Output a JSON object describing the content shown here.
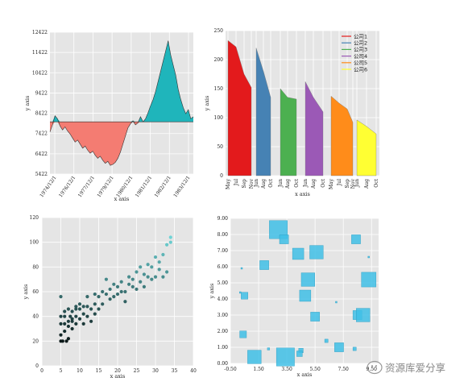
{
  "chart_data": [
    {
      "type": "area",
      "panel": "top-left",
      "xlabel": "x axis",
      "ylabel": "y axis",
      "ylim": [
        5422,
        12422
      ],
      "yticks": [
        5422,
        6422,
        7422,
        8422,
        9422,
        10422,
        11422,
        12422
      ],
      "xtick_labels": [
        "1974/12/1",
        "1976/12/1",
        "1977/12/1",
        "1979/12/1",
        "1980/12/1",
        "1981/12/1",
        "1982/12/1",
        "1983/12/1"
      ],
      "baseline": 8000,
      "colors": {
        "above": "#1fb5bb",
        "below": "#f47c72"
      },
      "values": [
        7500,
        7850,
        8300,
        8150,
        7800,
        7600,
        7750,
        7550,
        7400,
        7200,
        7000,
        7100,
        6900,
        6700,
        6800,
        6600,
        6450,
        6550,
        6350,
        6200,
        6300,
        6100,
        5950,
        6050,
        5850,
        5900,
        6000,
        6200,
        6500,
        6900,
        7300,
        7700,
        7900,
        8050,
        7850,
        7950,
        8250,
        8000,
        8150,
        8450,
        8800,
        9100,
        9500,
        10000,
        10500,
        11000,
        11500,
        12000,
        11300,
        10800,
        10300,
        9600,
        9100,
        8700,
        8400,
        8600,
        8150,
        8250
      ]
    },
    {
      "type": "area",
      "panel": "top-right",
      "xlabel": "x axis",
      "ylabel": "y axis",
      "ylim": [
        0,
        250
      ],
      "yticks": [
        0,
        50,
        100,
        150,
        200,
        250
      ],
      "legend_position": "top-right",
      "series": [
        {
          "name": "公司1",
          "color": "#e31a1c",
          "categories": [
            "May",
            "Jul",
            "Sep",
            "Nov"
          ],
          "values": [
            233,
            222,
            175,
            152
          ]
        },
        {
          "name": "公司2",
          "color": "#4682b4",
          "categories": [
            "Jun",
            "Aug",
            "Oct"
          ],
          "values": [
            220,
            180,
            135
          ]
        },
        {
          "name": "公司3",
          "color": "#4cb050",
          "categories": [
            "Jun",
            "Aug",
            "Oct"
          ],
          "values": [
            150,
            135,
            132
          ]
        },
        {
          "name": "公司4",
          "color": "#9b59b6",
          "categories": [
            "Jun",
            "Aug",
            "Oct"
          ],
          "values": [
            162,
            135,
            110
          ]
        },
        {
          "name": "公司5",
          "color": "#ff8c1a",
          "categories": [
            "May",
            "Jul",
            "Sep",
            "Nov"
          ],
          "values": [
            137,
            125,
            115,
            92
          ]
        },
        {
          "name": "公司6",
          "color": "#ffff33",
          "categories": [
            "Jun",
            "Aug",
            "Oct"
          ],
          "values": [
            96,
            85,
            72
          ]
        }
      ]
    },
    {
      "type": "scatter",
      "panel": "bottom-left",
      "xlabel": "x axis",
      "ylabel": "y axis",
      "xlim": [
        0,
        40
      ],
      "ylim": [
        0,
        120
      ],
      "xticks": [
        0,
        5,
        10,
        15,
        20,
        25,
        30,
        35,
        40
      ],
      "yticks": [
        0,
        20,
        40,
        60,
        80,
        100,
        120
      ],
      "color_low": "#0c1a1a",
      "color_high": "#6fd6d8",
      "x": [
        5,
        5,
        5,
        5,
        5,
        5.5,
        6,
        6,
        6,
        6,
        6.5,
        7,
        7,
        7,
        7,
        7.5,
        8,
        8,
        8,
        8,
        9,
        9,
        9,
        9,
        10,
        10,
        10,
        11,
        11,
        11,
        12,
        12,
        12,
        13,
        13,
        14,
        14,
        14,
        15,
        15,
        16,
        16,
        17,
        17,
        18,
        18,
        19,
        19,
        20,
        20,
        21,
        21,
        22,
        22,
        23,
        23,
        24,
        24,
        25,
        25,
        26,
        26,
        27,
        27,
        28,
        28,
        29,
        29,
        30,
        30,
        31,
        31,
        32,
        32,
        33,
        33,
        34,
        34
      ],
      "y": [
        20,
        34,
        40,
        56,
        25,
        20,
        28,
        34,
        44,
        40,
        20,
        46,
        36,
        32,
        22,
        40,
        44,
        30,
        38,
        36,
        46,
        34,
        40,
        48,
        46,
        38,
        50,
        42,
        34,
        48,
        48,
        40,
        56,
        46,
        36,
        50,
        58,
        42,
        56,
        46,
        60,
        50,
        58,
        70,
        54,
        62,
        56,
        66,
        64,
        58,
        60,
        68,
        52,
        60,
        72,
        66,
        70,
        64,
        76,
        62,
        80,
        68,
        74,
        64,
        82,
        72,
        80,
        70,
        88,
        72,
        84,
        78,
        90,
        72,
        98,
        76,
        104,
        100
      ]
    },
    {
      "type": "scatter",
      "panel": "bottom-right",
      "subtype": "bubble",
      "xlabel": "x axis",
      "ylabel": "y axis",
      "xlim": [
        -0.5,
        10
      ],
      "ylim": [
        0,
        9
      ],
      "xtick_labels": [
        "-0.50",
        "1.50",
        "3.50",
        "5.50",
        "7.50",
        "9.50"
      ],
      "xticks": [
        -0.5,
        1.5,
        3.5,
        5.5,
        7.5,
        9.5
      ],
      "ytick_labels": [
        "0.00",
        "1.00",
        "2.00",
        "3.00",
        "4.00",
        "5.00",
        "6.00",
        "7.00",
        "8.00",
        "9.00"
      ],
      "color": "#40bfe6",
      "x": [
        2.9,
        3.3,
        1.9,
        4.3,
        5.6,
        5.0,
        8.4,
        9.3,
        4.8,
        5.5,
        4.5,
        8.5,
        8.9,
        7.2,
        6.3,
        2.2,
        1.2,
        0.5,
        0.3,
        0.4,
        3.4,
        4.4,
        8.3,
        0.2,
        9.3,
        7.0
      ],
      "y": [
        8.3,
        7.7,
        6.1,
        6.8,
        6.9,
        5.2,
        7.7,
        5.2,
        4.2,
        2.9,
        0.8,
        3.0,
        3.0,
        1.0,
        1.4,
        0.9,
        0.4,
        4.2,
        5.9,
        1.8,
        0.4,
        0.6,
        0.9,
        4.4,
        6.6,
        3.8
      ],
      "sizes": [
        1.6,
        0.8,
        0.8,
        1.0,
        1.2,
        1.2,
        0.8,
        1.3,
        1.0,
        0.8,
        0.4,
        0.8,
        1.2,
        0.8,
        0.3,
        0.2,
        1.2,
        0.6,
        0.1,
        0.6,
        1.6,
        0.5,
        0.3,
        0.1,
        0.1,
        0.1
      ]
    }
  ],
  "watermark": {
    "text": "资源库爱分享"
  }
}
